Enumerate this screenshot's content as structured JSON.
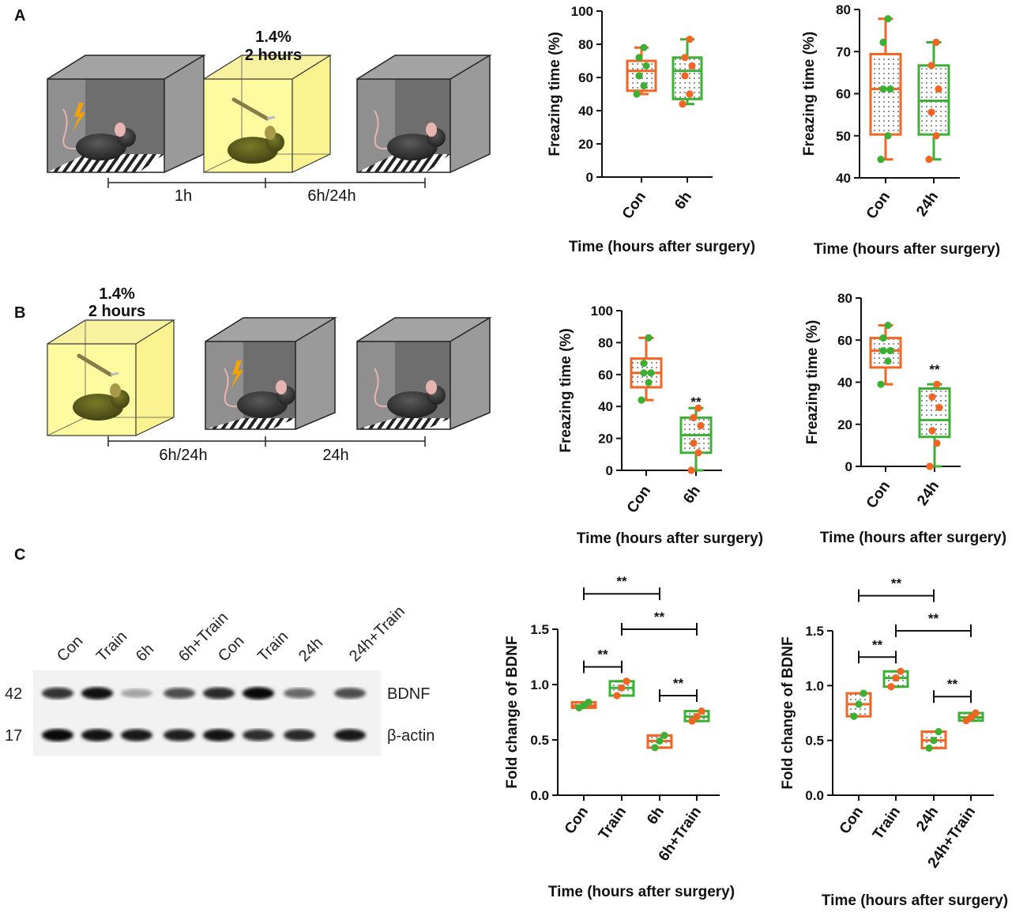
{
  "colors": {
    "orange": "#f26522",
    "green": "#3cb034",
    "yellow": "#fdfaa0",
    "gray": "#8c8c8c"
  },
  "panels": {
    "A": {
      "label": "A",
      "iso_label_line1": "1.4%",
      "iso_label_line2": "2 hours",
      "timeline": [
        "1h",
        "6h/24h"
      ]
    },
    "B": {
      "label": "B",
      "iso_label_line1": "1.4%",
      "iso_label_line2": "2 hours",
      "timeline": [
        "6h/24h",
        "24h"
      ]
    },
    "C": {
      "label": "C",
      "lanes": [
        "Con",
        "Train",
        "6h",
        "6h+Train",
        "Con",
        "Train",
        "24h",
        "24h+Train"
      ],
      "proteins": [
        {
          "mw": "42",
          "name": "BDNF",
          "intensity": [
            0.75,
            0.92,
            0.2,
            0.62,
            0.8,
            0.95,
            0.5,
            0.62
          ]
        },
        {
          "mw": "17",
          "name": "β-actin",
          "intensity": [
            0.95,
            0.9,
            0.88,
            0.85,
            0.9,
            0.78,
            0.8,
            0.88
          ]
        }
      ]
    }
  },
  "chart_data": [
    {
      "id": "A-6h",
      "type": "box",
      "ylabel": "Freazing time (%)",
      "xlabel": "Time (hours after surgery)",
      "ylim": [
        0,
        100
      ],
      "yticks": [
        0,
        20,
        40,
        60,
        80,
        100
      ],
      "categories": [
        "Con",
        "6h"
      ],
      "box_colors": [
        "orange",
        "green"
      ],
      "boxes": [
        {
          "min": 50,
          "q1": 52,
          "median": 64,
          "q3": 70,
          "max": 78,
          "points": [
            50,
            55,
            61,
            67,
            72,
            78
          ]
        },
        {
          "min": 44,
          "q1": 47,
          "median": 64,
          "q3": 72,
          "max": 83,
          "points": [
            44,
            50,
            61,
            67,
            72,
            83
          ]
        }
      ],
      "annotations": []
    },
    {
      "id": "A-24h",
      "type": "box",
      "ylabel": "Freazing time (%)",
      "xlabel": "Time (hours after surgery)",
      "ylim": [
        40,
        80
      ],
      "yticks": [
        40,
        50,
        60,
        70,
        80
      ],
      "categories": [
        "Con",
        "24h"
      ],
      "box_colors": [
        "orange",
        "green"
      ],
      "boxes": [
        {
          "min": 44.4,
          "q1": 50.3,
          "median": 61.1,
          "q3": 69.4,
          "max": 77.8,
          "points": [
            44.4,
            50,
            61.1,
            61.1,
            72.2,
            77.8
          ]
        },
        {
          "min": 44.4,
          "q1": 50.3,
          "median": 58.3,
          "q3": 66.7,
          "max": 72.2,
          "points": [
            44.4,
            50,
            55.6,
            61.1,
            66.7,
            72.2
          ]
        }
      ],
      "annotations": []
    },
    {
      "id": "B-6h",
      "type": "box",
      "ylabel": "Freazing time (%)",
      "xlabel": "Time (hours after surgery)",
      "ylim": [
        0,
        100
      ],
      "yticks": [
        0,
        20,
        40,
        60,
        80,
        100
      ],
      "categories": [
        "Con",
        "6h"
      ],
      "box_colors": [
        "orange",
        "green"
      ],
      "boxes": [
        {
          "min": 44,
          "q1": 52,
          "median": 61,
          "q3": 70,
          "max": 83,
          "points": [
            44,
            55,
            61,
            61,
            67,
            83
          ]
        },
        {
          "min": 0,
          "q1": 11,
          "median": 22,
          "q3": 33,
          "max": 39,
          "points": [
            0,
            11,
            17,
            28,
            33,
            39
          ]
        }
      ],
      "annotations": [
        {
          "type": "star",
          "text": "**",
          "category": 1,
          "y": 40
        }
      ]
    },
    {
      "id": "B-24h",
      "type": "box",
      "ylabel": "Freazing time (%)",
      "xlabel": "Time (hours after surgery)",
      "ylim": [
        0,
        80
      ],
      "yticks": [
        0,
        20,
        40,
        60,
        80
      ],
      "categories": [
        "Con",
        "24h"
      ],
      "box_colors": [
        "orange",
        "green"
      ],
      "boxes": [
        {
          "min": 39,
          "q1": 47,
          "median": 55,
          "q3": 61,
          "max": 67,
          "points": [
            39,
            50,
            55,
            55,
            61,
            67
          ]
        },
        {
          "min": 0,
          "q1": 14,
          "median": 22,
          "q3": 37,
          "max": 39,
          "points": [
            0,
            11,
            17,
            28,
            33,
            39
          ]
        }
      ],
      "annotations": [
        {
          "type": "star",
          "text": "**",
          "category": 1,
          "y": 44
        }
      ]
    },
    {
      "id": "C-6h",
      "type": "box",
      "ylabel": "Fold change of BDNF",
      "xlabel": "Time (hours after surgery)",
      "ylim": [
        0,
        1.5
      ],
      "yticks": [
        0.0,
        0.5,
        1.0,
        1.5
      ],
      "ytick_labels": [
        "0.0",
        "0.5",
        "1.0",
        "1.5"
      ],
      "categories": [
        "Con",
        "Train",
        "6h",
        "6h+Train"
      ],
      "box_colors": [
        "orange",
        "green",
        "orange",
        "green"
      ],
      "boxes": [
        {
          "min": 0.79,
          "q1": 0.79,
          "median": 0.81,
          "q3": 0.84,
          "max": 0.84,
          "points": [
            0.79,
            0.81,
            0.84
          ]
        },
        {
          "min": 0.9,
          "q1": 0.9,
          "median": 0.97,
          "q3": 1.03,
          "max": 1.03,
          "points": [
            0.9,
            0.97,
            1.03
          ]
        },
        {
          "min": 0.43,
          "q1": 0.43,
          "median": 0.49,
          "q3": 0.54,
          "max": 0.54,
          "points": [
            0.43,
            0.49,
            0.54
          ]
        },
        {
          "min": 0.67,
          "q1": 0.67,
          "median": 0.71,
          "q3": 0.76,
          "max": 0.76,
          "points": [
            0.67,
            0.71,
            0.76
          ]
        }
      ],
      "annotations": [
        {
          "type": "bracket",
          "text": "**",
          "from": 0,
          "to": 2,
          "y": 1.82
        },
        {
          "type": "bracket",
          "text": "**",
          "from": 1,
          "to": 3,
          "y": 1.5
        },
        {
          "type": "bracket",
          "text": "**",
          "from": 0,
          "to": 1,
          "y": 1.16
        },
        {
          "type": "bracket",
          "text": "**",
          "from": 2,
          "to": 3,
          "y": 0.9
        }
      ]
    },
    {
      "id": "C-24h",
      "type": "box",
      "ylabel": "Fold change of BDNF",
      "xlabel": "Time (hours after surgery)",
      "ylim": [
        0,
        1.5
      ],
      "yticks": [
        0.0,
        0.5,
        1.0,
        1.5
      ],
      "ytick_labels": [
        "0.0",
        "0.5",
        "1.0",
        "1.5"
      ],
      "categories": [
        "Con",
        "Train",
        "24h",
        "24h+Train"
      ],
      "box_colors": [
        "orange",
        "green",
        "orange",
        "green"
      ],
      "boxes": [
        {
          "min": 0.72,
          "q1": 0.72,
          "median": 0.83,
          "q3": 0.93,
          "max": 0.93,
          "points": [
            0.72,
            0.83,
            0.93
          ]
        },
        {
          "min": 0.99,
          "q1": 0.99,
          "median": 1.07,
          "q3": 1.13,
          "max": 1.13,
          "points": [
            0.99,
            1.07,
            1.13
          ]
        },
        {
          "min": 0.43,
          "q1": 0.43,
          "median": 0.5,
          "q3": 0.58,
          "max": 0.58,
          "points": [
            0.43,
            0.5,
            0.58
          ]
        },
        {
          "min": 0.68,
          "q1": 0.68,
          "median": 0.71,
          "q3": 0.75,
          "max": 0.75,
          "points": [
            0.68,
            0.71,
            0.75
          ]
        }
      ],
      "annotations": [
        {
          "type": "bracket",
          "text": "**",
          "from": 0,
          "to": 2,
          "y": 1.82
        },
        {
          "type": "bracket",
          "text": "**",
          "from": 1,
          "to": 3,
          "y": 1.5
        },
        {
          "type": "bracket",
          "text": "**",
          "from": 0,
          "to": 1,
          "y": 1.26
        },
        {
          "type": "bracket",
          "text": "**",
          "from": 2,
          "to": 3,
          "y": 0.9
        }
      ]
    }
  ]
}
